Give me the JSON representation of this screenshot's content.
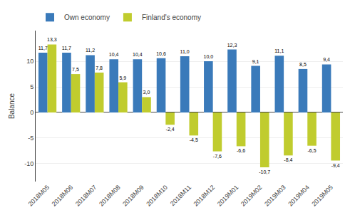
{
  "chart_data": {
    "type": "bar",
    "categories": [
      "2018M05",
      "2018M06",
      "2018M07",
      "2018M08",
      "2018M09",
      "2018M10",
      "2018M11",
      "2018M12",
      "2019M01",
      "2019M02",
      "2019M03",
      "2019M04",
      "2019M05"
    ],
    "series": [
      {
        "name": "Own economy",
        "color": "#3a7aba",
        "values": [
          11.7,
          11.7,
          11.2,
          10.4,
          10.4,
          10.6,
          11.0,
          10.0,
          12.3,
          9.1,
          11.1,
          8.5,
          9.4
        ],
        "value_labels": [
          "11,7",
          "11,7",
          "11,2",
          "10,4",
          "10,4",
          "10,6",
          "11,0",
          "10,0",
          "12,3",
          "9,1",
          "11,1",
          "8,5",
          "9,4"
        ]
      },
      {
        "name": "Finland's economy",
        "color": "#c0cc2e",
        "values": [
          13.3,
          7.5,
          7.8,
          5.9,
          3.0,
          -2.4,
          -4.5,
          -7.6,
          -6.6,
          -10.7,
          -8.4,
          -6.5,
          -9.4
        ],
        "value_labels": [
          "13,3",
          "7,5",
          "7,8",
          "5,9",
          "3,0",
          "-2,4",
          "-4,5",
          "-7,6",
          "-6,6",
          "-10,7",
          "-8,4",
          "-6,5",
          "-9,4"
        ]
      }
    ],
    "ylabel": "Balance",
    "ylim": [
      -13.5,
      16.0
    ],
    "yticks": [
      -10,
      -5,
      0,
      5,
      10
    ],
    "grid": true,
    "legend": "upper left",
    "data_labels": true
  }
}
